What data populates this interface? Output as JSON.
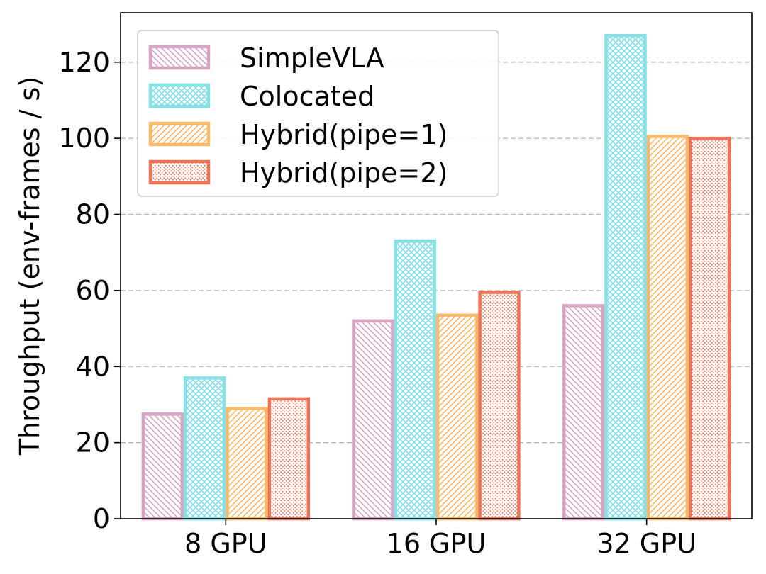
{
  "chart_data": {
    "type": "bar",
    "categories": [
      "8 GPU",
      "16 GPU",
      "32 GPU"
    ],
    "series": [
      {
        "name": "SimpleVLA",
        "values": [
          27.5,
          52,
          56
        ],
        "color": "#D8A4C4",
        "hatch": "diagonal-back"
      },
      {
        "name": "Colocated",
        "values": [
          37,
          73,
          127
        ],
        "color": "#86E0E6",
        "hatch": "crosshatch"
      },
      {
        "name": "Hybrid(pipe=1)",
        "values": [
          29,
          53.5,
          100.5
        ],
        "color": "#F9BB6A",
        "hatch": "diagonal-forward"
      },
      {
        "name": "Hybrid(pipe=2)",
        "values": [
          31.5,
          59.5,
          100
        ],
        "color": "#EE7458",
        "hatch": "dots"
      }
    ],
    "xlabel": "",
    "ylabel": "Throughput (env-frames / s)",
    "ylim": [
      0,
      133
    ],
    "yticks": [
      0,
      20,
      40,
      60,
      80,
      100,
      120
    ],
    "grid": true,
    "legend_position": "top-left"
  }
}
